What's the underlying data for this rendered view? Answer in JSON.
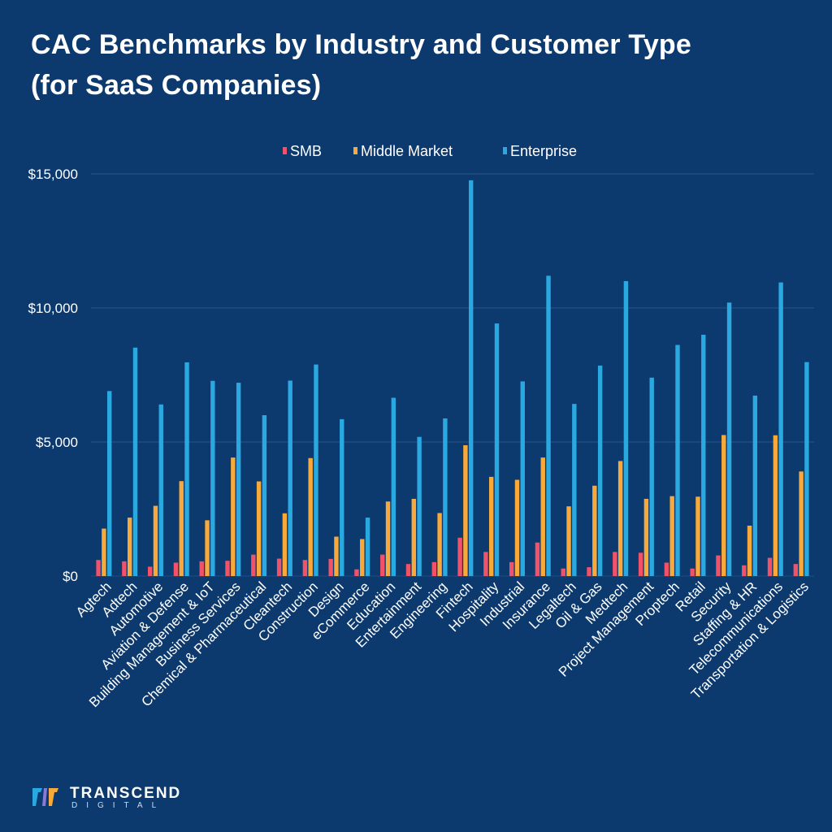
{
  "title_line1": "CAC Benchmarks by Industry and Customer Type",
  "title_line2": "(for SaaS Companies)",
  "logo": {
    "word": "TRANSCEND",
    "sub": "DIGITAL"
  },
  "colors": {
    "background": "#0d3a6e",
    "smb": "#f0526a",
    "middle": "#f7a93c",
    "enterprise": "#2aa8e0",
    "grid": "#2a5488"
  },
  "chart_data": {
    "type": "bar",
    "title": "CAC Benchmarks by Industry and Customer Type (for SaaS Companies)",
    "xlabel": "",
    "ylabel": "",
    "ylim": [
      0,
      15000
    ],
    "yticks": [
      0,
      5000,
      10000,
      15000
    ],
    "ytick_labels": [
      "$0",
      "$5,000",
      "$10,000",
      "$15,000"
    ],
    "grid": true,
    "legend": "top-center",
    "categories": [
      "Agtech",
      "Adtech",
      "Automotive",
      "Aviation & Defense",
      "Building Management & IoT",
      "Business Services",
      "Chemical & Pharmaceutical",
      "Cleantech",
      "Construction",
      "Design",
      "eCommerce",
      "Education",
      "Entertainment",
      "Engineering",
      "Fintech",
      "Hospitality",
      "Industrial",
      "Insurance",
      "Legaltech",
      "Oil & Gas",
      "Medtech",
      "Project Management",
      "Proptech",
      "Retail",
      "Security",
      "Staffing & HR",
      "Telecommunications",
      "Transportation & Logistics"
    ],
    "series": [
      {
        "name": "SMB",
        "color": "#f0526a",
        "values": [
          600,
          550,
          350,
          500,
          550,
          570,
          800,
          650,
          600,
          640,
          250,
          800,
          450,
          520,
          1430,
          900,
          520,
          1250,
          280,
          330,
          900,
          870,
          500,
          280,
          770,
          400,
          680,
          450
        ]
      },
      {
        "name": "Middle Market",
        "color": "#f7a93c",
        "values": [
          1770,
          2180,
          2620,
          3540,
          2080,
          4420,
          3530,
          2340,
          4400,
          1470,
          1380,
          2780,
          2880,
          2350,
          4880,
          3700,
          3590,
          4420,
          2600,
          3370,
          4290,
          2880,
          2980,
          2960,
          5260,
          1880,
          5250,
          3900
        ]
      },
      {
        "name": "Enterprise",
        "color": "#2aa8e0",
        "values": [
          6900,
          8520,
          6400,
          7970,
          7280,
          7210,
          6000,
          7290,
          7890,
          5850,
          2180,
          6650,
          5190,
          5880,
          14760,
          9420,
          7260,
          11200,
          6420,
          7850,
          11000,
          7400,
          8620,
          9000,
          10200,
          6730,
          10950,
          7980
        ]
      }
    ]
  }
}
